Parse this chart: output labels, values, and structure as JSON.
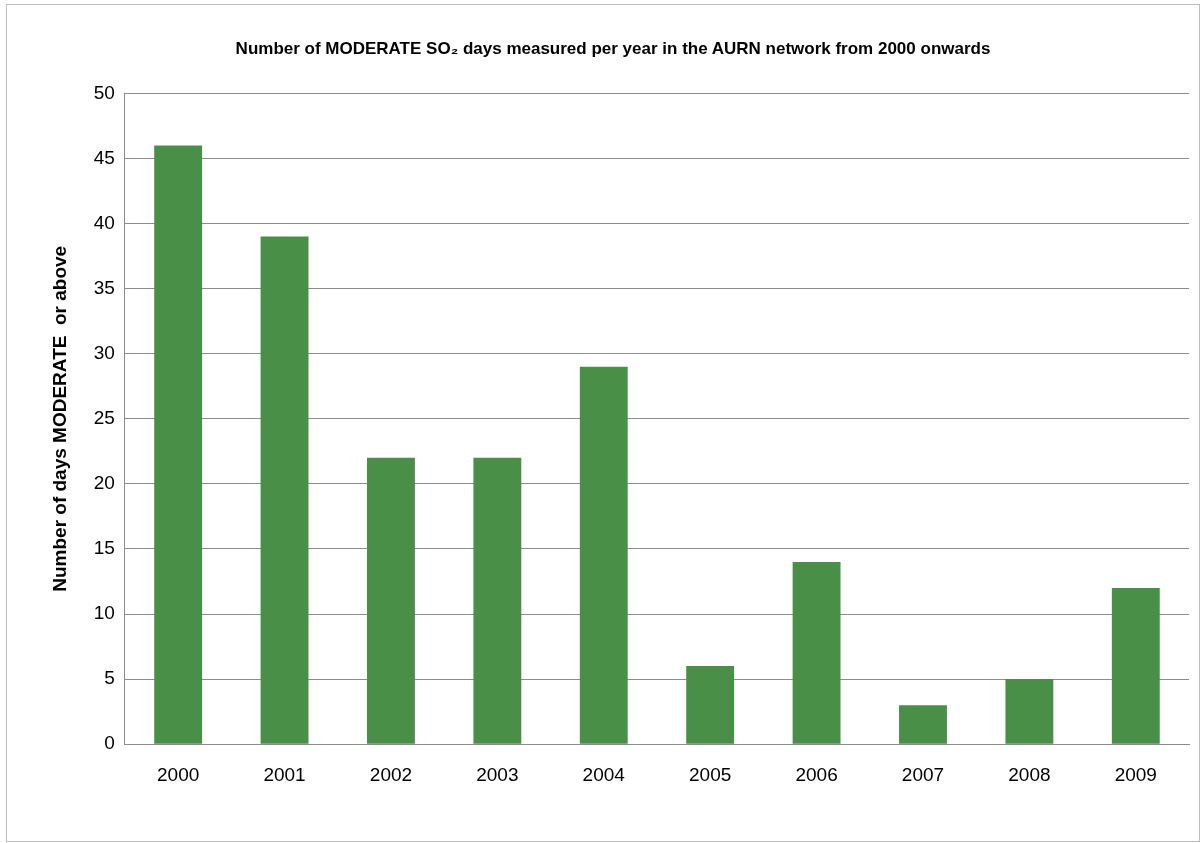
{
  "chart_data": {
    "type": "bar",
    "title": "Number of MODERATE SO₂ days measured per year in the AURN network from 2000 onwards",
    "ylabel": "Number of days MODERATE  or above",
    "categories": [
      "2000",
      "2001",
      "2002",
      "2003",
      "2004",
      "2005",
      "2006",
      "2007",
      "2008",
      "2009"
    ],
    "values": [
      46,
      39,
      22,
      22,
      29,
      6,
      14,
      3,
      5,
      12
    ],
    "color": "#4a8f47",
    "ylim": [
      0,
      50
    ],
    "yticks": [
      0,
      5,
      10,
      15,
      20,
      25,
      30,
      35,
      40,
      45,
      50
    ],
    "grid": "y"
  }
}
